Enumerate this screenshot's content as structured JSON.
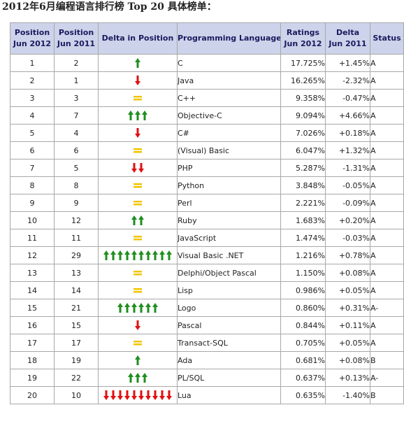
{
  "title": "2012年6月编程语言排行榜 Top 20 具体榜单：",
  "headers": {
    "pos_now": [
      "Position",
      "Jun 2012"
    ],
    "pos_prev": [
      "Position",
      "Jun 2011"
    ],
    "delta_pos": "Delta in Position",
    "language": "Programming Language",
    "ratings": [
      "Ratings",
      "Jun 2012"
    ],
    "delta": [
      "Delta",
      "Jun 2011"
    ],
    "status": "Status"
  },
  "colors": {
    "up": "#1e8f1e",
    "down": "#e01010",
    "same": "#f2c400",
    "header_bg": "#ccd3ea",
    "link": "#2222aa"
  },
  "rows": [
    {
      "pos": "1",
      "prev": "2",
      "change": {
        "dir": "up",
        "count": 1
      },
      "language": "C",
      "rating": "17.725%",
      "delta": "+1.45%",
      "status": "A"
    },
    {
      "pos": "2",
      "prev": "1",
      "change": {
        "dir": "down",
        "count": 1
      },
      "language": "Java",
      "rating": "16.265%",
      "delta": "-2.32%",
      "status": "A"
    },
    {
      "pos": "3",
      "prev": "3",
      "change": {
        "dir": "same",
        "count": 1
      },
      "language": "C++",
      "rating": "9.358%",
      "delta": "-0.47%",
      "status": "A"
    },
    {
      "pos": "4",
      "prev": "7",
      "change": {
        "dir": "up",
        "count": 3
      },
      "language": "Objective-C",
      "rating": "9.094%",
      "delta": "+4.66%",
      "status": "A"
    },
    {
      "pos": "5",
      "prev": "4",
      "change": {
        "dir": "down",
        "count": 1
      },
      "language": "C#",
      "rating": "7.026%",
      "delta": "+0.18%",
      "status": "A"
    },
    {
      "pos": "6",
      "prev": "6",
      "change": {
        "dir": "same",
        "count": 1
      },
      "language": "(Visual) Basic",
      "rating": "6.047%",
      "delta": "+1.32%",
      "status": "A"
    },
    {
      "pos": "7",
      "prev": "5",
      "change": {
        "dir": "down",
        "count": 2
      },
      "language": "PHP",
      "rating": "5.287%",
      "delta": "-1.31%",
      "status": "A"
    },
    {
      "pos": "8",
      "prev": "8",
      "change": {
        "dir": "same",
        "count": 1
      },
      "language": "Python",
      "rating": "3.848%",
      "delta": "-0.05%",
      "status": "A"
    },
    {
      "pos": "9",
      "prev": "9",
      "change": {
        "dir": "same",
        "count": 1
      },
      "language": "Perl",
      "rating": "2.221%",
      "delta": "-0.09%",
      "status": "A"
    },
    {
      "pos": "10",
      "prev": "12",
      "change": {
        "dir": "up",
        "count": 2
      },
      "language": "Ruby",
      "rating": "1.683%",
      "delta": "+0.20%",
      "status": "A"
    },
    {
      "pos": "11",
      "prev": "11",
      "change": {
        "dir": "same",
        "count": 1
      },
      "language": "JavaScript",
      "rating": "1.474%",
      "delta": "-0.03%",
      "status": "A"
    },
    {
      "pos": "12",
      "prev": "29",
      "change": {
        "dir": "up",
        "count": 10
      },
      "language": "Visual Basic .NET",
      "rating": "1.216%",
      "delta": "+0.78%",
      "status": "A"
    },
    {
      "pos": "13",
      "prev": "13",
      "change": {
        "dir": "same",
        "count": 1
      },
      "language": "Delphi/Object Pascal",
      "rating": "1.150%",
      "delta": "+0.08%",
      "status": "A"
    },
    {
      "pos": "14",
      "prev": "14",
      "change": {
        "dir": "same",
        "count": 1
      },
      "language": "Lisp",
      "rating": "0.986%",
      "delta": "+0.05%",
      "status": "A"
    },
    {
      "pos": "15",
      "prev": "21",
      "change": {
        "dir": "up",
        "count": 6
      },
      "language": "Logo",
      "rating": "0.860%",
      "delta": "+0.31%",
      "status": "A-"
    },
    {
      "pos": "16",
      "prev": "15",
      "change": {
        "dir": "down",
        "count": 1
      },
      "language": "Pascal",
      "rating": "0.844%",
      "delta": "+0.11%",
      "status": "A"
    },
    {
      "pos": "17",
      "prev": "17",
      "change": {
        "dir": "same",
        "count": 1
      },
      "language": "Transact-SQL",
      "rating": "0.705%",
      "delta": "+0.05%",
      "status": "A"
    },
    {
      "pos": "18",
      "prev": "19",
      "change": {
        "dir": "up",
        "count": 1
      },
      "language": "Ada",
      "rating": "0.681%",
      "delta": "+0.08%",
      "status": "B"
    },
    {
      "pos": "19",
      "prev": "22",
      "change": {
        "dir": "up",
        "count": 3
      },
      "language": "PL/SQL",
      "rating": "0.637%",
      "delta": "+0.13%",
      "status": "A-"
    },
    {
      "pos": "20",
      "prev": "10",
      "change": {
        "dir": "down",
        "count": 10
      },
      "language": "Lua",
      "rating": "0.635%",
      "delta": "-1.40%",
      "status": "B"
    }
  ]
}
